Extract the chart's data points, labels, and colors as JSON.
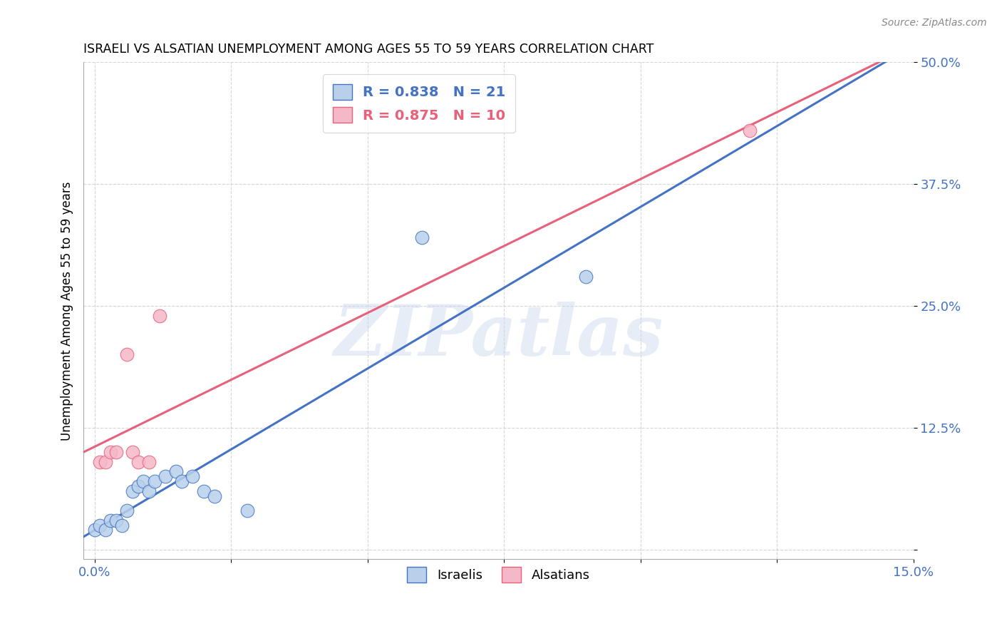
{
  "title": "ISRAELI VS ALSATIAN UNEMPLOYMENT AMONG AGES 55 TO 59 YEARS CORRELATION CHART",
  "source": "Source: ZipAtlas.com",
  "ylabel": "Unemployment Among Ages 55 to 59 years",
  "xlim": [
    -0.002,
    0.15
  ],
  "ylim": [
    -0.01,
    0.5
  ],
  "xticks": [
    0.0,
    0.025,
    0.05,
    0.075,
    0.1,
    0.125,
    0.15
  ],
  "yticks": [
    0.0,
    0.125,
    0.25,
    0.375,
    0.5
  ],
  "xticklabels": [
    "0.0%",
    "",
    "",
    "",
    "",
    "",
    "15.0%"
  ],
  "yticklabels": [
    "",
    "12.5%",
    "25.0%",
    "37.5%",
    "50.0%"
  ],
  "israeli_x": [
    0.0,
    0.001,
    0.002,
    0.003,
    0.004,
    0.005,
    0.006,
    0.007,
    0.008,
    0.009,
    0.01,
    0.011,
    0.013,
    0.015,
    0.016,
    0.018,
    0.02,
    0.022,
    0.028,
    0.06,
    0.09
  ],
  "israeli_y": [
    0.02,
    0.025,
    0.02,
    0.03,
    0.03,
    0.025,
    0.04,
    0.06,
    0.065,
    0.07,
    0.06,
    0.07,
    0.075,
    0.08,
    0.07,
    0.075,
    0.06,
    0.055,
    0.04,
    0.32,
    0.28
  ],
  "alsatian_x": [
    0.001,
    0.002,
    0.003,
    0.004,
    0.006,
    0.007,
    0.008,
    0.01,
    0.012,
    0.12
  ],
  "alsatian_y": [
    0.09,
    0.09,
    0.1,
    0.1,
    0.2,
    0.1,
    0.09,
    0.09,
    0.24,
    0.43
  ],
  "israeli_R": 0.838,
  "israeli_N": 21,
  "alsatian_R": 0.875,
  "alsatian_N": 10,
  "israeli_color": "#b8d0ea",
  "alsatian_color": "#f5b8c8",
  "israeli_line_color": "#4472c4",
  "alsatian_line_color": "#e8607a",
  "watermark": "ZIPatlas",
  "background_color": "#ffffff",
  "grid_color": "#cccccc"
}
